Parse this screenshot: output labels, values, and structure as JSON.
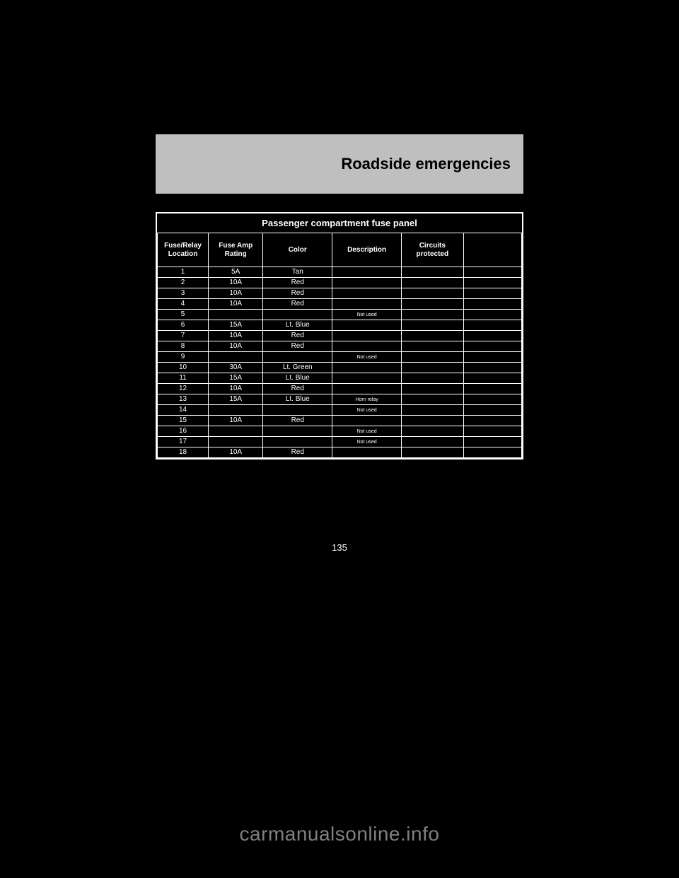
{
  "header": {
    "title": "Roadside emergencies"
  },
  "table": {
    "type": "table",
    "title": "Passenger compartment fuse panel",
    "background_color": "#000000",
    "border_color": "#ffffff",
    "text_color": "#ffffff",
    "header_fontsize": 10,
    "cell_fontsize": 10,
    "small_fontsize": 7,
    "columns": [
      {
        "label": "Fuse/Relay\nLocation",
        "widthPct": 14,
        "name": "col-num"
      },
      {
        "label": "Fuse Amp\nRating",
        "widthPct": 15,
        "name": "col-amp"
      },
      {
        "label": "Color",
        "widthPct": 19,
        "name": "col-color"
      },
      {
        "label": "Description",
        "widthPct": 19,
        "name": "col-desc"
      },
      {
        "label": "Circuits\nprotected",
        "widthPct": 17,
        "name": "col-circuit"
      },
      {
        "label": "",
        "widthPct": 16,
        "name": "col-misc"
      }
    ],
    "rows": [
      [
        "1",
        "5A",
        "Tan",
        "",
        "",
        ""
      ],
      [
        "2",
        "10A",
        "Red",
        "",
        "",
        ""
      ],
      [
        "3",
        "10A",
        "Red",
        "",
        "",
        ""
      ],
      [
        "4",
        "10A",
        "Red",
        "",
        "",
        ""
      ],
      [
        "5",
        "",
        "",
        "Not used",
        "",
        ""
      ],
      [
        "6",
        "15A",
        "Lt. Blue",
        "",
        "",
        ""
      ],
      [
        "7",
        "10A",
        "Red",
        "",
        "",
        ""
      ],
      [
        "8",
        "10A",
        "Red",
        "",
        "",
        ""
      ],
      [
        "9",
        "",
        "",
        "Not used",
        "",
        ""
      ],
      [
        "10",
        "30A",
        "Lt. Green",
        "",
        "",
        ""
      ],
      [
        "11",
        "15A",
        "Lt. Blue",
        "",
        "",
        ""
      ],
      [
        "12",
        "10A",
        "Red",
        "",
        "",
        ""
      ],
      [
        "13",
        "15A",
        "Lt. Blue",
        "Horn relay",
        "",
        ""
      ],
      [
        "14",
        "",
        "",
        "Not used",
        "",
        ""
      ],
      [
        "15",
        "10A",
        "Red",
        "",
        "",
        ""
      ],
      [
        "16",
        "",
        "",
        "Not used",
        "",
        ""
      ],
      [
        "17",
        "",
        "",
        "Not used",
        "",
        ""
      ],
      [
        "18",
        "10A",
        "Red",
        "",
        "",
        ""
      ]
    ]
  },
  "pageNumber": "135",
  "watermark": "carmanualsonline.info",
  "style": {
    "page_bg": "#000000",
    "header_bg": "#bfbfbf",
    "header_text_color": "#000000",
    "header_fontsize": 22,
    "watermark_color": "#808080",
    "watermark_fontsize": 28
  }
}
